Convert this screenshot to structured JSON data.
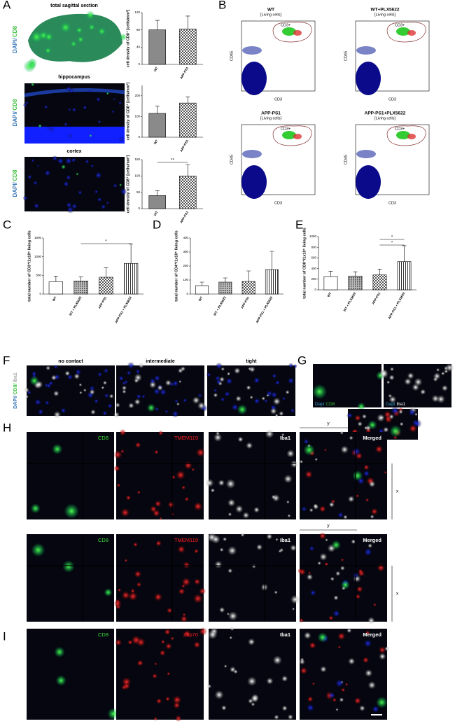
{
  "A": {
    "letter": "A",
    "stain": [
      "DAPI/",
      "CD8"
    ],
    "images": [
      "total sagittal section",
      "hippocampus",
      "cortex"
    ],
    "charts": [
      {
        "ylabel": "cell density of CD8⁺ [cells/mm²]",
        "categories": [
          "WT",
          "APP-PS1"
        ],
        "values": [
          80,
          82
        ],
        "errors": [
          22,
          30
        ],
        "ylim": [
          0,
          120
        ],
        "yticks": [
          0,
          40,
          80,
          120
        ],
        "significance": null
      },
      {
        "ylabel": "cell density of CD8⁺ [cells/mm²]",
        "categories": [
          "WT",
          "APP-PS1"
        ],
        "values": [
          115,
          165
        ],
        "errors": [
          35,
          30
        ],
        "ylim": [
          0,
          250
        ],
        "yticks": [
          0,
          100,
          200
        ],
        "significance": null
      },
      {
        "ylabel": "cell density of CD8⁺ [cells/mm²]",
        "categories": [
          "WT",
          "APP-PS1"
        ],
        "values": [
          40,
          100
        ],
        "errors": [
          15,
          35
        ],
        "ylim": [
          0,
          150
        ],
        "yticks": [
          0,
          50,
          100,
          150
        ],
        "significance": [
          "**"
        ]
      }
    ]
  },
  "B": {
    "letter": "B",
    "plots": [
      {
        "title": "WT",
        "subtitle": "[Living cells]",
        "gate": "CD3+",
        "xlabel": "CD3",
        "ylabel": "CD45"
      },
      {
        "title": "WT+PLX5622",
        "subtitle": "[Living cells]",
        "gate": "CD3+",
        "xlabel": "CD3",
        "ylabel": "CD45"
      },
      {
        "title": "APP-PS1",
        "subtitle": "[Living cells]",
        "gate": "CD3+",
        "xlabel": "CD3",
        "ylabel": "CD45"
      },
      {
        "title": "APP-PS1+PLX5622",
        "subtitle": "[Living cells]",
        "gate": "CD3+",
        "xlabel": "CD3",
        "ylabel": "CD45"
      }
    ]
  },
  "C": {
    "letter": "C",
    "chart": {
      "ylabel": "total number of CD3⁺/1x10⁶ living cells",
      "categories": [
        "WT",
        "WT + PLX5622",
        "APP-PS1",
        "APP-PS1 + PLX5622"
      ],
      "values": [
        330,
        350,
        450,
        820
      ],
      "errors": [
        150,
        110,
        250,
        520
      ],
      "ylim": [
        0,
        1500
      ],
      "yticks": [
        0,
        500,
        1000,
        1500
      ],
      "significance": [
        "*"
      ]
    }
  },
  "D": {
    "letter": "D",
    "chart": {
      "ylabel": "total number of CD4⁺/1x10⁶ living cells",
      "categories": [
        "WT",
        "WT + PLX5622",
        "APP-PS1",
        "APP-PS1 + PLX5622"
      ],
      "values": [
        60,
        85,
        90,
        175
      ],
      "errors": [
        25,
        30,
        75,
        130
      ],
      "ylim": [
        0,
        400
      ],
      "yticks": [
        0,
        100,
        200,
        300,
        400
      ],
      "significance": null
    }
  },
  "E": {
    "letter": "E",
    "chart": {
      "ylabel": "total number of CD8⁺/1x10⁶ living cells",
      "categories": [
        "WT",
        "WT + PLX5622",
        "APP-PS1",
        "APP-PS1 + PLX5622"
      ],
      "values": [
        250,
        260,
        280,
        530
      ],
      "errors": [
        100,
        80,
        110,
        300
      ],
      "ylim": [
        0,
        1000
      ],
      "yticks": [
        0,
        200,
        400,
        600,
        800,
        1000
      ],
      "significance": [
        "*",
        "*"
      ]
    }
  },
  "F": {
    "letter": "F",
    "stain": [
      "DAPI/",
      "CD8/",
      "Iba1"
    ],
    "columns": [
      "no contact",
      "intermediate",
      "tight"
    ]
  },
  "G": {
    "letter": "G",
    "images": [
      [
        "Dapi",
        "CD8"
      ],
      [
        "Dapi",
        "Iba1"
      ],
      [
        "Dapi",
        "CD8",
        "Iba1"
      ]
    ]
  },
  "H": {
    "letter": "H",
    "rows": [
      {
        "channels": [
          "CD8",
          "TMEM119",
          "Iba1",
          "Merged"
        ],
        "y": "y",
        "x": "x"
      },
      {
        "channels": [
          "CD8",
          "TMEM119",
          "Iba1",
          "Merged"
        ],
        "y": "y",
        "x": "x"
      }
    ]
  },
  "I": {
    "letter": "I",
    "channels": [
      "CD8",
      "Zap70",
      "Iba1",
      "Merged"
    ]
  }
}
